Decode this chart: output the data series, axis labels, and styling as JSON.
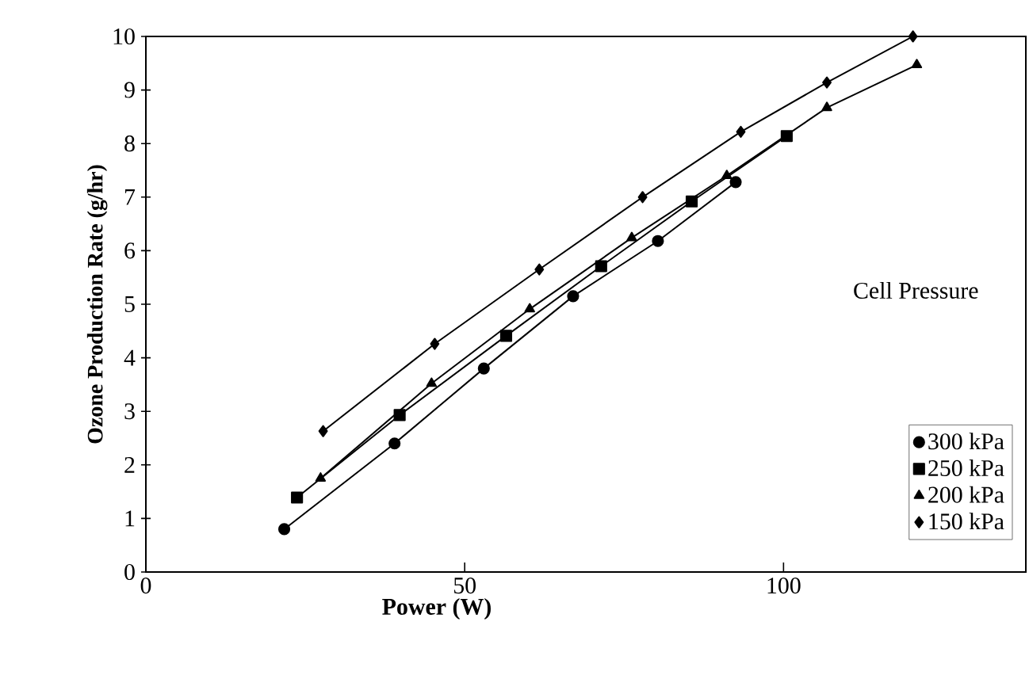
{
  "chart_data": {
    "type": "line",
    "xlabel": "Power (W)",
    "ylabel": "Ozone Production Rate (g/hr)",
    "legend_title": "Cell Pressure",
    "legend": "bottom right",
    "line_style": "solid",
    "xlim": [
      0,
      138
    ],
    "xticks": [
      0,
      50,
      100
    ],
    "ylim": [
      0,
      10
    ],
    "yticks": [
      0,
      1,
      2,
      3,
      4,
      5,
      6,
      7,
      8,
      9,
      10
    ],
    "series": [
      {
        "name": "300 kPa",
        "color": "#000000",
        "marker": "circle",
        "x": [
          21.7,
          39,
          53,
          67,
          80.3,
          92.5
        ],
        "values": [
          0.8,
          2.4,
          3.8,
          5.15,
          6.18,
          7.28
        ]
      },
      {
        "name": "250 kPa",
        "color": "#000000",
        "marker": "square",
        "x": [
          23.7,
          39.8,
          56.5,
          71.4,
          85.6,
          100.5
        ],
        "values": [
          1.39,
          2.93,
          4.41,
          5.71,
          6.92,
          8.14
        ]
      },
      {
        "name": "200 kPa",
        "color": "#000000",
        "marker": "triangle",
        "x": [
          27.4,
          44.8,
          60.2,
          76.2,
          91.1,
          106.8,
          120.9
        ],
        "values": [
          1.75,
          3.52,
          4.91,
          6.24,
          7.4,
          8.67,
          9.47
        ]
      },
      {
        "name": "150 kPa",
        "color": "#000000",
        "marker": "diamond",
        "x": [
          27.8,
          45.3,
          61.7,
          77.9,
          93.3,
          106.8,
          120.3
        ],
        "values": [
          2.63,
          4.26,
          5.65,
          7.0,
          8.22,
          9.14,
          10.0
        ]
      }
    ]
  }
}
